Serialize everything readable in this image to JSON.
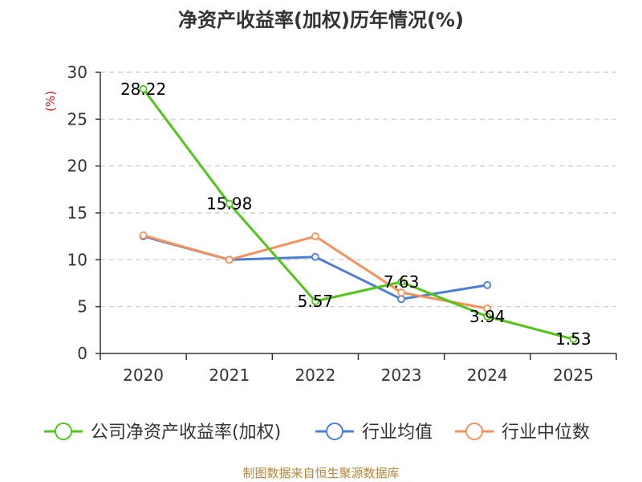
{
  "chart_data": {
    "type": "line",
    "title": "净资产收益率(加权)历年情况(%)",
    "ylabel": "(%)",
    "xlabel": "",
    "ylim": [
      0,
      30
    ],
    "yticks": [
      0,
      5,
      10,
      15,
      20,
      25,
      30
    ],
    "categories": [
      "2020",
      "2021",
      "2022",
      "2023",
      "2024",
      "2025"
    ],
    "grid": true,
    "legend_position": "bottom",
    "series": [
      {
        "name": "公司净资产收益率(加权)",
        "color": "#52c41a",
        "values": [
          28.22,
          15.98,
          5.57,
          7.63,
          3.94,
          1.53
        ],
        "labels": [
          "28.22",
          "15.98",
          "5.57",
          "7.63",
          "3.94",
          "1.53"
        ]
      },
      {
        "name": "行业均值",
        "color": "#4a7fd6",
        "values": [
          12.5,
          10.0,
          10.3,
          5.8,
          7.3,
          null
        ]
      },
      {
        "name": "行业中位数",
        "color": "#f5915c",
        "values": [
          12.6,
          10.0,
          12.5,
          6.5,
          4.8,
          null
        ]
      }
    ],
    "source": "制图数据来自恒生聚源数据库"
  },
  "colors": {
    "unit_label": "#d42020",
    "source_text": "#b8863b"
  }
}
